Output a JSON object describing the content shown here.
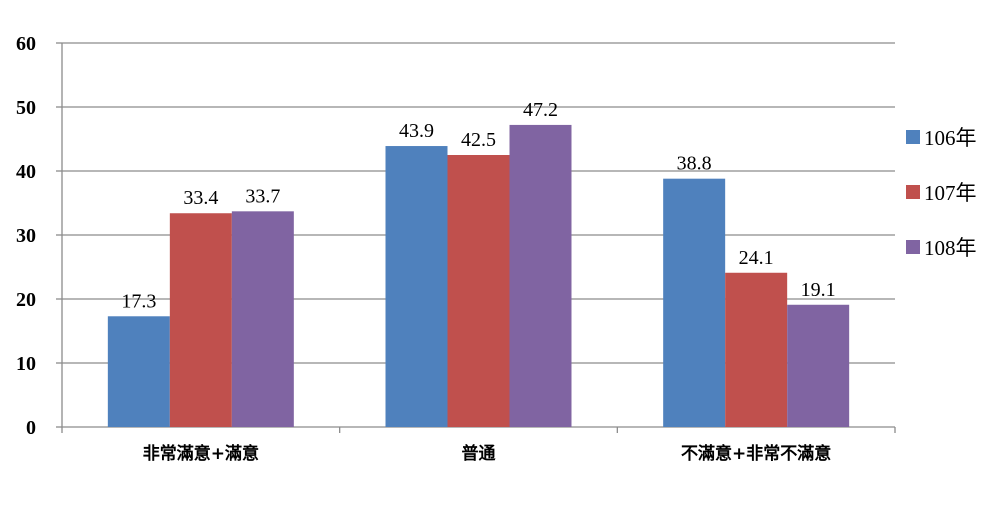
{
  "chart_data": {
    "type": "bar",
    "categories": [
      "非常滿意+滿意",
      "普通",
      "不滿意+非常不滿意"
    ],
    "series": [
      {
        "name": "106年",
        "values": [
          17.3,
          43.9,
          38.8
        ],
        "color": "#4F81BD"
      },
      {
        "name": "107年",
        "values": [
          33.4,
          42.5,
          24.1
        ],
        "color": "#C0504D"
      },
      {
        "name": "108年",
        "values": [
          33.7,
          47.2,
          19.1
        ],
        "color": "#8064A2"
      }
    ],
    "ylim": [
      0,
      60
    ],
    "yticks": [
      0,
      10,
      20,
      30,
      40,
      50,
      60
    ],
    "grid": true,
    "legend_position": "right",
    "title": "",
    "xlabel": "",
    "ylabel": ""
  }
}
